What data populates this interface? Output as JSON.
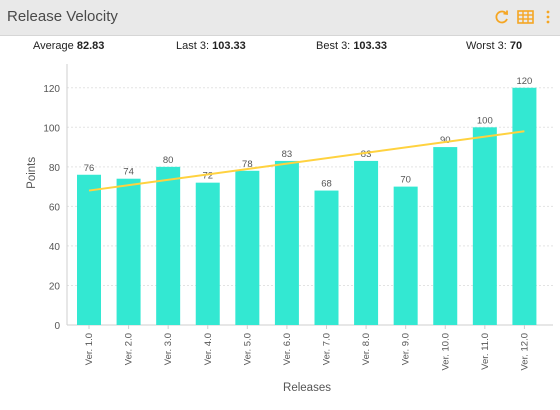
{
  "header": {
    "title": "Release Velocity",
    "icons": [
      "refresh-icon",
      "grid-icon",
      "more-vertical-icon"
    ],
    "accent": "#f5a623"
  },
  "stats": {
    "average_label": "Average",
    "average_value": "82.83",
    "last3_label": "Last 3:",
    "last3_value": "103.33",
    "best3_label": "Best 3:",
    "best3_value": "103.33",
    "worst3_label": "Worst 3:",
    "worst3_value": "70"
  },
  "chart_data": {
    "type": "bar",
    "categories": [
      "Ver. 1.0",
      "Ver. 2.0",
      "Ver. 3.0",
      "Ver. 4.0",
      "Ver. 5.0",
      "Ver. 6.0",
      "Ver. 7.0",
      "Ver. 8.0",
      "Ver. 9.0",
      "Ver. 10.0",
      "Ver. 11.0",
      "Ver. 12.0"
    ],
    "values": [
      76,
      74,
      80,
      72,
      78,
      83,
      68,
      83,
      70,
      90,
      100,
      120
    ],
    "xlabel": "Releases",
    "ylabel": "Points",
    "ylim": [
      0,
      130
    ],
    "yticks": [
      0,
      20,
      40,
      60,
      80,
      100,
      120
    ],
    "trendline": {
      "start": 68,
      "end": 98
    },
    "bar_color": "#33e8d2",
    "trend_color": "#ffd23f",
    "grid": true
  }
}
